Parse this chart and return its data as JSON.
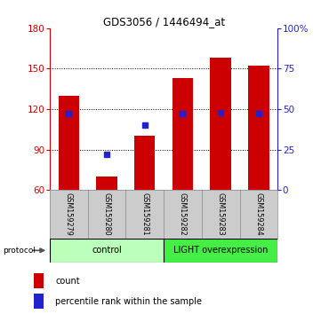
{
  "title": "GDS3056 / 1446494_at",
  "samples": [
    "GSM159279",
    "GSM159280",
    "GSM159281",
    "GSM159282",
    "GSM159283",
    "GSM159284"
  ],
  "count_values": [
    130,
    70,
    100,
    143,
    158,
    152
  ],
  "percentile_values": [
    47,
    22,
    40,
    47,
    48,
    47
  ],
  "ylim_left": [
    60,
    180
  ],
  "ylim_right": [
    0,
    100
  ],
  "yticks_left": [
    60,
    90,
    120,
    150,
    180
  ],
  "yticks_right": [
    0,
    25,
    50,
    75,
    100
  ],
  "yticklabels_right": [
    "0",
    "25",
    "50",
    "75",
    "100%"
  ],
  "bar_color": "#cc0000",
  "dot_color": "#2222cc",
  "bar_width": 0.55,
  "groups": [
    {
      "label": "control",
      "indices": [
        0,
        1,
        2
      ],
      "color": "#bbffbb"
    },
    {
      "label": "LIGHT overexpression",
      "indices": [
        3,
        4,
        5
      ],
      "color": "#44ee44"
    }
  ],
  "protocol_label": "protocol",
  "legend_items": [
    {
      "label": "count",
      "color": "#cc0000"
    },
    {
      "label": "percentile rank within the sample",
      "color": "#2222cc"
    }
  ],
  "axis_color_left": "#cc0000",
  "axis_color_right": "#2222cc",
  "background_color": "#ffffff",
  "label_bg_color": "#cccccc",
  "grid_dotted_color": "#000000",
  "dotted_ticks": [
    90,
    120,
    150
  ]
}
